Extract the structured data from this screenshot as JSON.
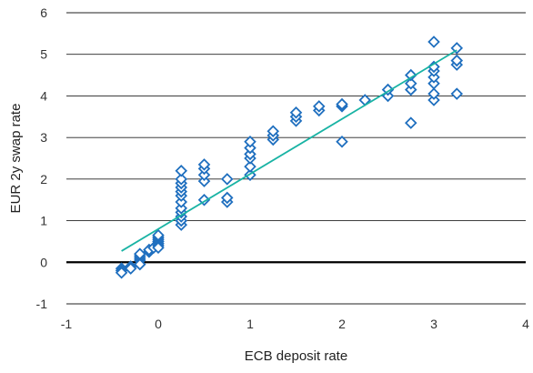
{
  "chart_data": {
    "type": "scatter",
    "title": "",
    "xlabel": "ECB deposit rate",
    "ylabel": "EUR 2y swap rate",
    "xlim": [
      -1,
      4
    ],
    "ylim": [
      -1,
      6
    ],
    "x_ticks": [
      -1,
      0,
      1,
      2,
      3,
      4
    ],
    "y_ticks": [
      -1,
      0,
      1,
      2,
      3,
      4,
      5,
      6
    ],
    "x_tick_labels": [
      "-1",
      "0",
      "1",
      "2",
      "3",
      "4"
    ],
    "y_tick_labels": [
      "-1",
      "0",
      "1",
      "2",
      "3",
      "4",
      "5",
      "6"
    ],
    "grid": "horizontal",
    "zero_line": true,
    "marker": "diamond",
    "colors": {
      "points": "#1f6fbf",
      "trendline": "#19b3a4",
      "grid": "#222222",
      "zero_line": "#000000"
    },
    "series": [
      {
        "points": [
          [
            -0.4,
            -0.15
          ],
          [
            -0.4,
            -0.2
          ],
          [
            -0.4,
            -0.25
          ],
          [
            -0.3,
            -0.1
          ],
          [
            -0.3,
            -0.15
          ],
          [
            -0.2,
            0.05
          ],
          [
            -0.2,
            0.1
          ],
          [
            -0.2,
            0.15
          ],
          [
            -0.2,
            0.2
          ],
          [
            -0.2,
            -0.05
          ],
          [
            -0.1,
            0.25
          ],
          [
            -0.1,
            0.3
          ],
          [
            -0.05,
            0.35
          ],
          [
            0.0,
            0.4
          ],
          [
            0.0,
            0.45
          ],
          [
            0.0,
            0.5
          ],
          [
            0.0,
            0.55
          ],
          [
            0.0,
            0.6
          ],
          [
            0.0,
            0.65
          ],
          [
            0.0,
            0.35
          ],
          [
            0.25,
            0.9
          ],
          [
            0.25,
            1.0
          ],
          [
            0.25,
            1.1
          ],
          [
            0.25,
            1.2
          ],
          [
            0.25,
            1.3
          ],
          [
            0.25,
            1.45
          ],
          [
            0.25,
            1.6
          ],
          [
            0.25,
            1.7
          ],
          [
            0.25,
            1.8
          ],
          [
            0.25,
            1.9
          ],
          [
            0.25,
            2.0
          ],
          [
            0.25,
            2.2
          ],
          [
            0.5,
            1.5
          ],
          [
            0.5,
            1.95
          ],
          [
            0.5,
            2.1
          ],
          [
            0.5,
            2.25
          ],
          [
            0.5,
            2.35
          ],
          [
            0.75,
            1.45
          ],
          [
            0.75,
            1.55
          ],
          [
            0.75,
            2.0
          ],
          [
            1.0,
            2.1
          ],
          [
            1.0,
            2.3
          ],
          [
            1.0,
            2.5
          ],
          [
            1.0,
            2.6
          ],
          [
            1.0,
            2.75
          ],
          [
            1.0,
            2.9
          ],
          [
            1.25,
            2.95
          ],
          [
            1.25,
            3.05
          ],
          [
            1.25,
            3.15
          ],
          [
            1.5,
            3.4
          ],
          [
            1.5,
            3.5
          ],
          [
            1.5,
            3.6
          ],
          [
            1.75,
            3.65
          ],
          [
            1.75,
            3.75
          ],
          [
            2.0,
            2.9
          ],
          [
            2.0,
            3.75
          ],
          [
            2.0,
            3.8
          ],
          [
            2.25,
            3.9
          ],
          [
            2.5,
            4.0
          ],
          [
            2.5,
            4.15
          ],
          [
            2.75,
            3.35
          ],
          [
            2.75,
            4.15
          ],
          [
            2.75,
            4.3
          ],
          [
            2.75,
            4.5
          ],
          [
            3.0,
            3.9
          ],
          [
            3.0,
            4.05
          ],
          [
            3.0,
            4.3
          ],
          [
            3.0,
            4.45
          ],
          [
            3.0,
            4.6
          ],
          [
            3.0,
            4.7
          ],
          [
            3.0,
            5.3
          ],
          [
            3.25,
            4.05
          ],
          [
            3.25,
            4.75
          ],
          [
            3.25,
            4.85
          ],
          [
            3.25,
            5.15
          ]
        ]
      }
    ],
    "trendline": {
      "x": [
        -0.4,
        3.25
      ],
      "y": [
        0.27,
        5.1
      ]
    }
  }
}
